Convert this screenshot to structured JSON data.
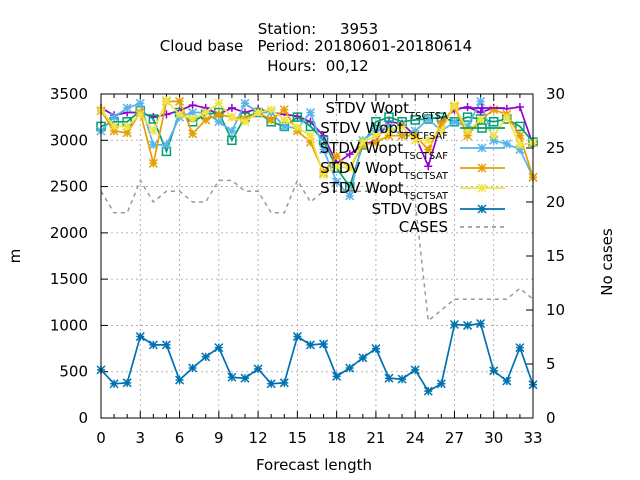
{
  "chart_data": {
    "type": "line",
    "title_lines": [
      "Station:     3953",
      "Cloud base   Period: 20180601-20180614",
      "Hours:  00,12"
    ],
    "xlabel": "Forecast length",
    "ylabel": "m",
    "y2label": "No cases",
    "xlim": [
      0,
      33
    ],
    "ylim": [
      0,
      3500
    ],
    "y2lim": [
      0,
      30
    ],
    "grid": true,
    "legend_position": "top-right",
    "x_ticks": [
      0,
      3,
      6,
      9,
      12,
      15,
      18,
      21,
      24,
      27,
      30,
      33
    ],
    "y_ticks": [
      0,
      500,
      1000,
      1500,
      2000,
      2500,
      3000,
      3500
    ],
    "y2_ticks": [
      0,
      5,
      10,
      15,
      20,
      25,
      30
    ],
    "x": [
      0,
      1,
      2,
      3,
      4,
      5,
      6,
      7,
      8,
      9,
      10,
      11,
      12,
      13,
      14,
      15,
      16,
      17,
      18,
      19,
      20,
      21,
      22,
      23,
      24,
      25,
      26,
      27,
      28,
      29,
      30,
      31,
      32,
      33
    ],
    "series": [
      {
        "name": "STDV Wopt",
        "legend_main": "STDV Wopt",
        "legend_sub": [
          "T",
          "S",
          "C",
          "T",
          "S",
          "A"
        ],
        "color": "#9400d3",
        "marker": "plus",
        "axis": "y",
        "values": [
          3350,
          3270,
          3300,
          3300,
          3250,
          3280,
          3320,
          3380,
          3350,
          3280,
          3350,
          3300,
          3340,
          3300,
          3280,
          3260,
          3200,
          3050,
          2750,
          2850,
          2950,
          3000,
          3200,
          3180,
          3050,
          2720,
          3200,
          3330,
          3360,
          3300,
          3350,
          3340,
          3360,
          2950
        ]
      },
      {
        "name": "STDV Wopt",
        "legend_main": "STDV Wopt",
        "legend_sub": [
          "T",
          "S",
          "C",
          "F",
          "S",
          "A",
          "F"
        ],
        "color": "#009e73",
        "marker": "box",
        "axis": "y",
        "values": [
          3150,
          3200,
          3200,
          3320,
          3230,
          2880,
          3300,
          3200,
          3280,
          3300,
          3000,
          3250,
          3300,
          3200,
          3150,
          3250,
          3150,
          3000,
          2700,
          2500,
          2950,
          3200,
          3250,
          3200,
          3220,
          3230,
          3250,
          3200,
          3250,
          3230,
          3200,
          3230,
          3150,
          2980
        ]
      },
      {
        "name": "STDV Wopt",
        "legend_main": "STDV Wopt",
        "legend_sub": [
          "T",
          "S",
          "C",
          "T",
          "S",
          "A",
          "F"
        ],
        "color": "#56b4e9",
        "marker": "star",
        "axis": "y",
        "values": [
          3100,
          3250,
          3350,
          3400,
          2950,
          2950,
          3250,
          3300,
          3300,
          3200,
          3100,
          3400,
          3300,
          3300,
          3150,
          3130,
          3300,
          2900,
          2550,
          2400,
          3000,
          3100,
          3150,
          3050,
          3100,
          3230,
          3100,
          3200,
          3150,
          3420,
          3000,
          2960,
          2900,
          2600
        ]
      },
      {
        "name": "STDV Wopt",
        "legend_main": "STDV Wopt",
        "legend_sub": [
          "T",
          "S",
          "C",
          "T",
          "S",
          "A",
          "T"
        ],
        "color": "#e69f00",
        "marker": "star",
        "axis": "y",
        "values": [
          3320,
          3100,
          3080,
          3300,
          2750,
          3420,
          3420,
          3070,
          3220,
          3280,
          3250,
          3230,
          3300,
          3220,
          3330,
          3100,
          2980,
          2650,
          2830,
          2700,
          2950,
          2980,
          3050,
          3050,
          3050,
          2900,
          3180,
          3360,
          3050,
          3220,
          3330,
          3280,
          3050,
          2600
        ]
      },
      {
        "name": "STDV Wopt",
        "legend_main": "STDV Wopt",
        "legend_sub": [
          "T",
          "S",
          "C",
          "T",
          "S",
          "A",
          "T"
        ],
        "color": "#f0e442",
        "marker": "star",
        "axis": "y",
        "values": [
          3330,
          3150,
          3150,
          3280,
          3100,
          3430,
          3280,
          3230,
          3300,
          3400,
          3250,
          3200,
          3300,
          3330,
          3220,
          3140,
          3050,
          2630,
          2720,
          2700,
          2980,
          3050,
          3100,
          3150,
          3000,
          3000,
          3100,
          3380,
          3100,
          3220,
          3050,
          3250,
          2950,
          2970
        ]
      },
      {
        "name": "STDV OBS",
        "legend_main": "STDV OBS",
        "legend_sub": [],
        "color": "#0072b2",
        "marker": "star",
        "axis": "y",
        "values": [
          520,
          370,
          380,
          880,
          790,
          790,
          410,
          540,
          660,
          760,
          440,
          430,
          530,
          370,
          380,
          880,
          790,
          800,
          450,
          540,
          650,
          750,
          430,
          420,
          520,
          290,
          370,
          1010,
          1000,
          1020,
          510,
          400,
          760,
          360
        ]
      },
      {
        "name": "CASES",
        "legend_main": "CASES",
        "legend_sub": [],
        "color": "#999999",
        "marker": "none",
        "dashed": true,
        "axis": "y2",
        "values": [
          21,
          19,
          19,
          22,
          20,
          21,
          21,
          20,
          20,
          22,
          22,
          21,
          21,
          19,
          19,
          22,
          20,
          21,
          21,
          21,
          21,
          21,
          21,
          21,
          20,
          9,
          10,
          11,
          11,
          11,
          11,
          11,
          12,
          11
        ]
      }
    ]
  }
}
